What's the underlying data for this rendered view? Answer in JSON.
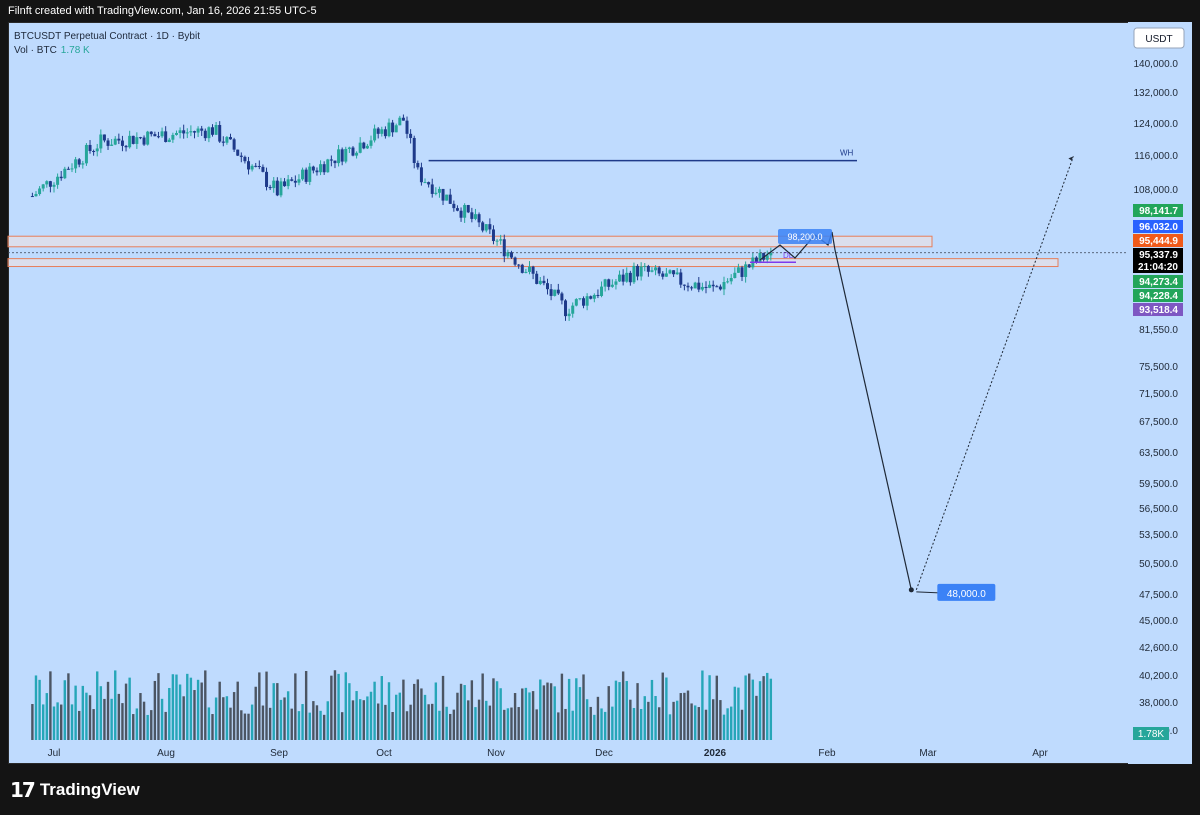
{
  "header": {
    "caption": "Filnft created with TradingView.com, Jan 16, 2026 21:55 UTC-5"
  },
  "legend": {
    "symbol": "BTCUSDT Perpetual Contract · 1D · Bybit",
    "vol_label": "Vol · BTC",
    "vol_value": "1.78 K"
  },
  "footer": {
    "brand": "TradingView"
  },
  "colors": {
    "up": "#26a69a",
    "down": "#1e3a8a",
    "vol_up": "#26a6b8",
    "vol_down": "#4b5563",
    "zone_border": "#e67e5a",
    "zone_fill": "#fde2d6",
    "wh_line": "#1e3a8a",
    "dl_line": "#7c3aed",
    "path": "#1f2937",
    "target_box": "#3b82f6"
  },
  "chart_data": {
    "type": "candlestick",
    "currency_button": "USDT",
    "y_ticks": [
      "140,000.0",
      "132,000.0",
      "124,000.0",
      "116,000.0",
      "108,000.0",
      "81,550.0",
      "75,500.0",
      "71,500.0",
      "67,500.0",
      "63,500.0",
      "59,500.0",
      "56,500.0",
      "53,500.0",
      "50,500.0",
      "47,500.0",
      "45,000.0",
      "42,600.0",
      "40,200.0",
      "38,000.0",
      "36,000.0"
    ],
    "x_ticks": [
      "Jul",
      "Aug",
      "Sep",
      "Oct",
      "Nov",
      "Dec",
      "2026",
      "Feb",
      "Mar",
      "Apr"
    ],
    "price_labels": [
      {
        "text": "98,141.7",
        "color": "#22a55a"
      },
      {
        "text": "96,032.0",
        "color": "#2962ff"
      },
      {
        "text": "95,444.9",
        "color": "#f05a1a"
      },
      {
        "text": "95,337.9",
        "color": "#000000"
      },
      {
        "text": "21:04:20",
        "color": "#000000"
      },
      {
        "text": "94,273.4",
        "color": "#22a55a"
      },
      {
        "text": "94,228.4",
        "color": "#22a55a"
      },
      {
        "text": "93,518.4",
        "color": "#7e57c2"
      }
    ],
    "volume_label": "1.78K",
    "annotations": {
      "wh": "WH",
      "dl": "DL",
      "price_tag": "98,200.0",
      "target": "48,000.0"
    },
    "key_points": [
      {
        "date": "2025-06-25",
        "close": 107000
      },
      {
        "date": "2025-07-14",
        "close": 119500
      },
      {
        "date": "2025-08-14",
        "close": 122500
      },
      {
        "date": "2025-09-01",
        "close": 108000
      },
      {
        "date": "2025-10-06",
        "close": 125000
      },
      {
        "date": "2025-10-10",
        "close": 112000
      },
      {
        "date": "2025-11-20",
        "close": 85000
      },
      {
        "date": "2025-12-10",
        "close": 92000
      },
      {
        "date": "2025-12-31",
        "close": 88500
      },
      {
        "date": "2026-01-16",
        "close": 95337.9
      }
    ],
    "projection": [
      {
        "date": "2026-01-16",
        "price": 95337.9
      },
      {
        "date": "2026-02-24",
        "price": 48000
      },
      {
        "date": "2026-04-10",
        "price": 116000
      }
    ],
    "zones": [
      {
        "low": 96500,
        "high": 98600
      },
      {
        "low": 92700,
        "high": 94200
      }
    ],
    "levels": {
      "wh": 115000,
      "dl": 93518.4
    }
  }
}
